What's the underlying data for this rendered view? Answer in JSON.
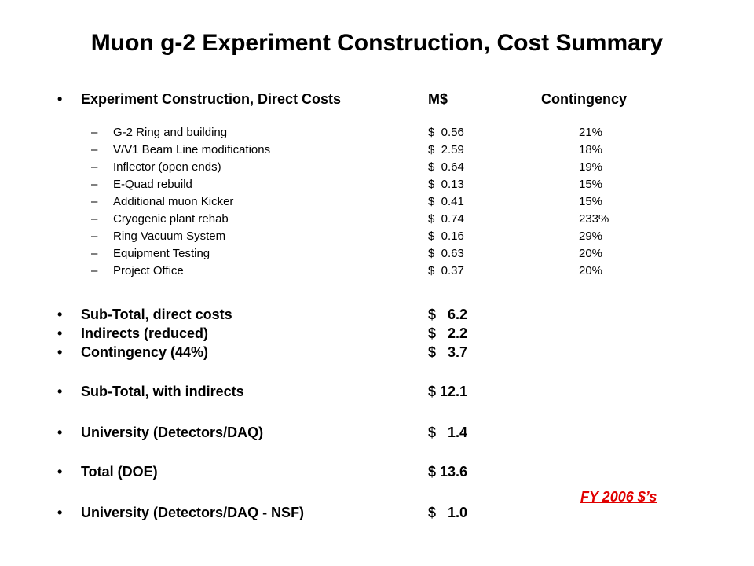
{
  "title": "Muon g-2 Experiment Construction, Cost Summary",
  "bullet_glyph": "•",
  "dash_glyph": "–",
  "header": {
    "label": "Experiment Construction, Direct Costs",
    "amount_col": "M$",
    "contingency_col": " Contingency"
  },
  "items": [
    {
      "label": "G-2 Ring and building",
      "amount": "$  0.56",
      "contingency": "21%"
    },
    {
      "label": "V/V1 Beam Line modifications",
      "amount": "$  2.59",
      "contingency": "18%"
    },
    {
      "label": "Inflector (open ends)",
      "amount": "$  0.64",
      "contingency": "19%"
    },
    {
      "label": "E-Quad rebuild",
      "amount": "$  0.13",
      "contingency": "15%"
    },
    {
      "label": "Additional muon Kicker",
      "amount": "$  0.41",
      "contingency": "15%"
    },
    {
      "label": "Cryogenic plant rehab",
      "amount": "$  0.74",
      "contingency": "233%"
    },
    {
      "label": "Ring Vacuum System",
      "amount": "$  0.16",
      "contingency": "29%"
    },
    {
      "label": "Equipment Testing",
      "amount": "$  0.63",
      "contingency": "20%"
    },
    {
      "label": "Project Office",
      "amount": "$  0.37",
      "contingency": "20%"
    }
  ],
  "totals": [
    {
      "label": "Sub-Total, direct costs",
      "amount": "$   6.2"
    },
    {
      "label": "Indirects (reduced)",
      "amount": "$   2.2"
    },
    {
      "label": "Contingency (44%)",
      "amount": "$   3.7"
    },
    {
      "label": "Sub-Total, with indirects",
      "amount": "$ 12.1"
    },
    {
      "label": "University (Detectors/DAQ)",
      "amount": "$   1.4"
    },
    {
      "label": "Total (DOE)",
      "amount": "$ 13.6"
    },
    {
      "label": "University (Detectors/DAQ - NSF)",
      "amount": "$   1.0"
    }
  ],
  "note": "FY 2006 $’s"
}
